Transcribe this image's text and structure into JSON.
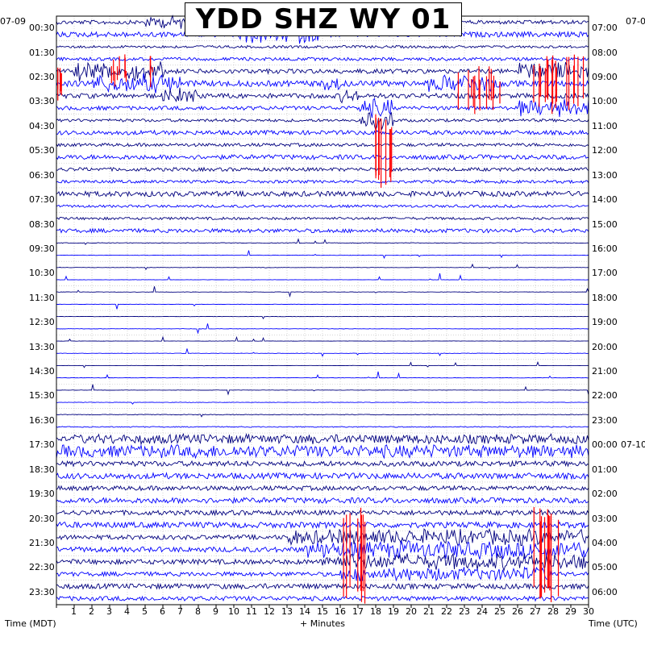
{
  "chart_data": {
    "type": "line",
    "title": "YDD SHZ WY 01",
    "xlabel": "+ Minutes",
    "left_axis_title": "Time (MDT)",
    "right_axis_title": "Time (UTC)",
    "left_date": "07-09",
    "right_date_top": "07-0",
    "right_date_mid": "07-10",
    "xlim": [
      0,
      30
    ],
    "x_ticks": [
      "1",
      "2",
      "3",
      "4",
      "5",
      "6",
      "7",
      "8",
      "9",
      "10",
      "11",
      "12",
      "13",
      "14",
      "15",
      "16",
      "17",
      "18",
      "19",
      "20",
      "21",
      "22",
      "23",
      "24",
      "25",
      "26",
      "27",
      "28",
      "29",
      "30"
    ],
    "left_times": [
      "00:30",
      "01:30",
      "02:30",
      "03:30",
      "04:30",
      "05:30",
      "06:30",
      "07:30",
      "08:30",
      "09:30",
      "10:30",
      "11:30",
      "12:30",
      "13:30",
      "14:30",
      "15:30",
      "16:30",
      "17:30",
      "18:30",
      "19:30",
      "20:30",
      "21:30",
      "22:30",
      "23:30"
    ],
    "right_times": [
      "07:00",
      "08:00",
      "09:00",
      "10:00",
      "11:00",
      "12:00",
      "13:00",
      "14:00",
      "15:00",
      "16:00",
      "17:00",
      "18:00",
      "19:00",
      "20:00",
      "21:00",
      "22:00",
      "23:00",
      "00:00",
      "01:00",
      "02:00",
      "03:00",
      "04:00",
      "05:00",
      "06:00"
    ],
    "series_colors": [
      "#00007f",
      "#0000ff"
    ],
    "clip_color": "#ff0000",
    "grid": true,
    "noise_by_row": [
      1.2,
      1.6,
      0.8,
      1.0,
      1.4,
      1.8,
      1.5,
      1.2,
      0.9,
      1.3,
      1.0,
      1.4,
      1.1,
      0.9,
      1.6,
      0.8,
      0.8,
      1.2,
      0.2,
      0.15,
      0.1,
      0.1,
      0.1,
      0.1,
      0.1,
      0.1,
      0.1,
      0.1,
      0.1,
      0.1,
      0.1,
      0.15,
      0.2,
      0.3,
      1.5,
      2.0,
      1.6,
      1.8,
      1.4,
      1.7,
      1.5,
      1.8,
      1.4,
      1.6,
      1.5,
      1.3,
      1.6,
      1.4
    ]
  }
}
